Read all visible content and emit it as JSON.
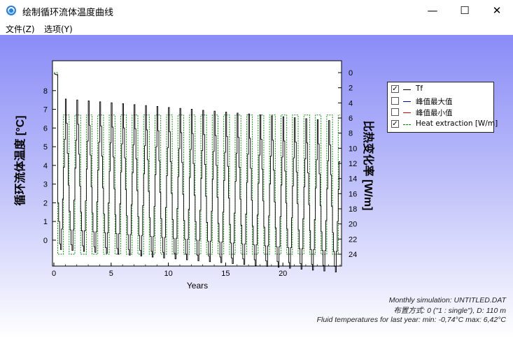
{
  "window": {
    "title": "绘制循环流体温度曲线",
    "controls": {
      "minimize": "—",
      "maximize": "☐",
      "close": "✕"
    }
  },
  "menu": [
    {
      "label": "文件(Z)"
    },
    {
      "label": "选项(Y)"
    }
  ],
  "chart_data": {
    "type": "line",
    "xlabel": "Years",
    "ylabel_left": "循环流体温度 [°C]",
    "ylabel_right": "比热变化率 [W/m]",
    "xlim": [
      0,
      25
    ],
    "ylim_left": [
      -0.75,
      9.0
    ],
    "ylim_right": [
      0,
      24
    ],
    "right_axis_inverted": true,
    "x_ticks": [
      "0",
      "5",
      "10",
      "15",
      "20"
    ],
    "y_ticks_left": [
      "0",
      "1",
      "2",
      "3",
      "4",
      "5",
      "6",
      "7",
      "8"
    ],
    "y_ticks_right": [
      "0",
      "2",
      "4",
      "6",
      "8",
      "10",
      "12",
      "14",
      "16",
      "18",
      "20",
      "22",
      "24"
    ],
    "years": 25,
    "tf_monthly_pattern": [
      7.6,
      6.3,
      4.7,
      3.0,
      1.6,
      0.6,
      -0.2,
      -0.5,
      0.6,
      2.2,
      3.9,
      5.4
    ],
    "tf_first_year_initial": 8.9,
    "tf_annual_drift": -0.05,
    "heat_extraction_pattern": [
      5.6,
      5.6,
      5.6,
      5.6,
      24.0,
      24.0,
      24.0,
      24.0,
      24.0,
      24.0,
      5.6,
      5.6
    ],
    "heat_extraction_first_year_start": 0.0,
    "series": [
      {
        "name": "Tf",
        "color": "#000000",
        "checked": true
      },
      {
        "name": "峰值最大值",
        "color": "#0000aa",
        "checked": false
      },
      {
        "name": "峰值最小值",
        "color": "#cc0000",
        "checked": false
      },
      {
        "name": "Heat extraction [W/m]",
        "color": "#008000",
        "checked": true,
        "dashed": true
      }
    ]
  },
  "info": {
    "line1": "Monthly simulation: UNTITLED.DAT",
    "line2": "布置方式: 0 (\"1 : single\"), D: 110 m",
    "line3": "Fluid temperatures for last year: min: -0,74°C max: 6,42°C"
  }
}
